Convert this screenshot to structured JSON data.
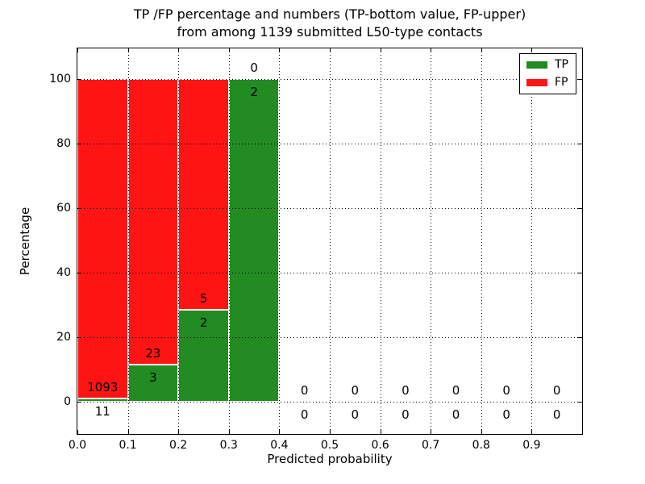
{
  "chart_data": {
    "type": "bar",
    "stacked": true,
    "title_line1": "TP /FP percentage and numbers (TP-bottom value, FP-upper)",
    "title_line2": "from among 1139 submitted L50-type contacts",
    "xlabel": "Predicted probability",
    "ylabel": "Percentage",
    "xlim": [
      0.0,
      1.0
    ],
    "ylim": [
      -10,
      109.5
    ],
    "xticks": [
      {
        "v": 0.0,
        "label": "0.0"
      },
      {
        "v": 0.1,
        "label": "0.1"
      },
      {
        "v": 0.2,
        "label": "0.2"
      },
      {
        "v": 0.3,
        "label": "0.3"
      },
      {
        "v": 0.4,
        "label": "0.4"
      },
      {
        "v": 0.5,
        "label": "0.5"
      },
      {
        "v": 0.6,
        "label": "0.6"
      },
      {
        "v": 0.7,
        "label": "0.7"
      },
      {
        "v": 0.8,
        "label": "0.8"
      },
      {
        "v": 0.9,
        "label": "0.9"
      }
    ],
    "yticks": [
      {
        "v": 0,
        "label": "0"
      },
      {
        "v": 20,
        "label": "20"
      },
      {
        "v": 40,
        "label": "40"
      },
      {
        "v": 60,
        "label": "60"
      },
      {
        "v": 80,
        "label": "80"
      },
      {
        "v": 100,
        "label": "100"
      }
    ],
    "grid": true,
    "grid_style": "dotted",
    "colors": {
      "tp": "#228b22",
      "fp": "#ff1414",
      "grid": "#000000"
    },
    "legend": {
      "position": "upper-right",
      "entries": [
        {
          "name": "TP",
          "color": "#228b22"
        },
        {
          "name": "FP",
          "color": "#ff1414"
        }
      ]
    },
    "bins": [
      {
        "x0": 0.0,
        "x1": 0.1,
        "tp": 11,
        "fp": 1093,
        "tp_pct": 1.0,
        "fp_pct": 99.0
      },
      {
        "x0": 0.1,
        "x1": 0.2,
        "tp": 3,
        "fp": 23,
        "tp_pct": 11.5,
        "fp_pct": 88.5
      },
      {
        "x0": 0.2,
        "x1": 0.3,
        "tp": 2,
        "fp": 5,
        "tp_pct": 28.6,
        "fp_pct": 71.4
      },
      {
        "x0": 0.3,
        "x1": 0.4,
        "tp": 2,
        "fp": 0,
        "tp_pct": 100.0,
        "fp_pct": 0.0
      },
      {
        "x0": 0.4,
        "x1": 0.5,
        "tp": 0,
        "fp": 0,
        "tp_pct": 0.0,
        "fp_pct": 0.0
      },
      {
        "x0": 0.5,
        "x1": 0.6,
        "tp": 0,
        "fp": 0,
        "tp_pct": 0.0,
        "fp_pct": 0.0
      },
      {
        "x0": 0.6,
        "x1": 0.7,
        "tp": 0,
        "fp": 0,
        "tp_pct": 0.0,
        "fp_pct": 0.0
      },
      {
        "x0": 0.7,
        "x1": 0.8,
        "tp": 0,
        "fp": 0,
        "tp_pct": 0.0,
        "fp_pct": 0.0
      },
      {
        "x0": 0.8,
        "x1": 0.9,
        "tp": 0,
        "fp": 0,
        "tp_pct": 0.0,
        "fp_pct": 0.0
      },
      {
        "x0": 0.9,
        "x1": 1.0,
        "tp": 0,
        "fp": 0,
        "tp_pct": 0.0,
        "fp_pct": 0.0
      }
    ]
  }
}
